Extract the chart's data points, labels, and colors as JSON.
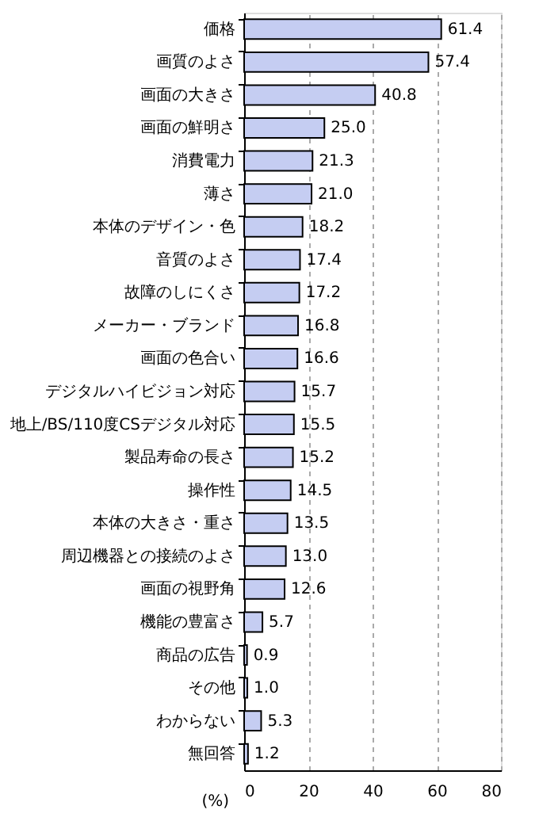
{
  "chart_data": {
    "type": "bar",
    "orientation": "horizontal",
    "xlabel": "(%)",
    "categories": [
      "価格",
      "画質のよさ",
      "画面の大きさ",
      "画面の鮮明さ",
      "消費電力",
      "薄さ",
      "本体のデザイン・色",
      "音質のよさ",
      "故障のしにくさ",
      "メーカー・ブランド",
      "画面の色合い",
      "デジタルハイビジョン対応",
      "地上/BS/110度CSデジタル対応",
      "製品寿命の長さ",
      "操作性",
      "本体の大きさ・重さ",
      "周辺機器との接続のよさ",
      "画面の視野角",
      "機能の豊富さ",
      "商品の広告",
      "その他",
      "わからない",
      "無回答"
    ],
    "values": [
      61.4,
      57.4,
      40.8,
      25.0,
      21.3,
      21.0,
      18.2,
      17.4,
      17.2,
      16.8,
      16.6,
      15.7,
      15.5,
      15.2,
      14.5,
      13.5,
      13.0,
      12.6,
      5.7,
      0.9,
      1.0,
      5.3,
      1.2
    ],
    "value_labels": [
      "61.4",
      "57.4",
      "40.8",
      "25.0",
      "21.3",
      "21.0",
      "18.2",
      "17.4",
      "17.2",
      "16.8",
      "16.6",
      "15.7",
      "15.5",
      "15.2",
      "14.5",
      "13.5",
      "13.0",
      "12.6",
      "5.7",
      "0.9",
      "1.0",
      "5.3",
      "1.2"
    ],
    "color": "#c5cdf2",
    "xlim": [
      0,
      80
    ],
    "xticks": [
      0,
      20,
      40,
      60,
      80
    ],
    "grid": "x"
  }
}
